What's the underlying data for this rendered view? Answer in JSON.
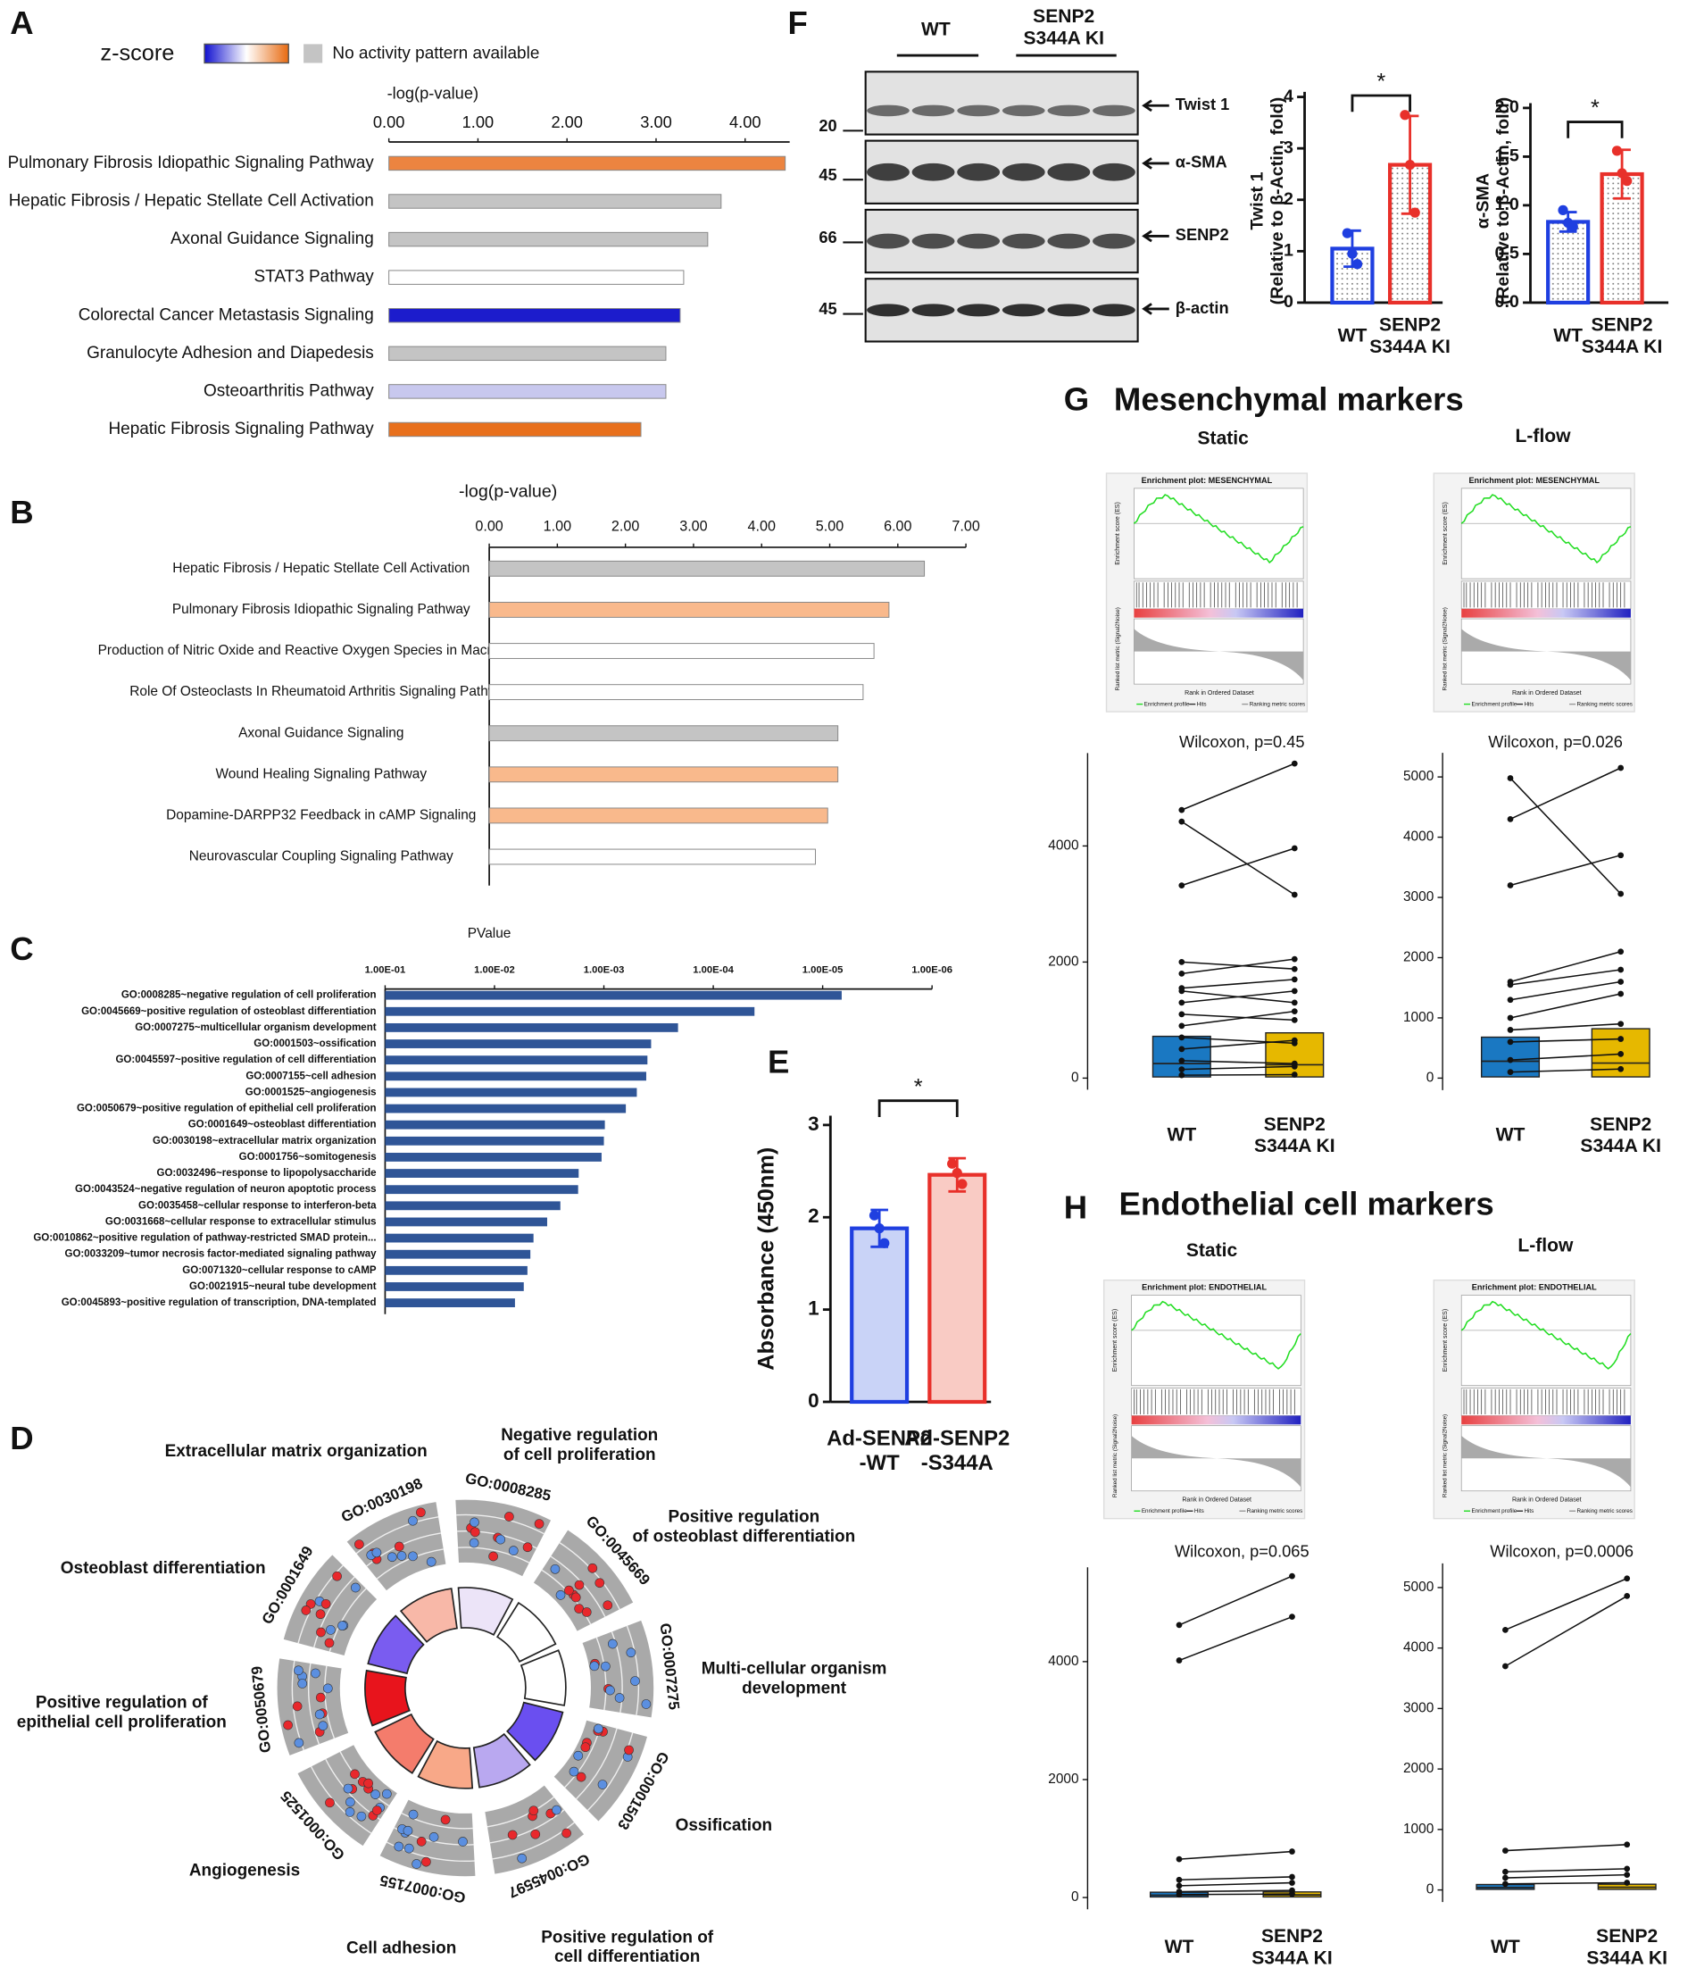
{
  "panel_labels": [
    "A",
    "B",
    "C",
    "D",
    "E",
    "F",
    "G",
    "H"
  ],
  "chart_data": [
    {
      "type": "hbar",
      "legend_title": "z-score",
      "legend_na": "No activity pattern available",
      "x_label": "-log(p-value)",
      "categories": [
        "Pulmonary Fibrosis Idiopathic Signaling Pathway",
        "Hepatic Fibrosis / Hepatic Stellate Cell Activation",
        "Axonal Guidance Signaling",
        "STAT3 Pathway",
        "Colorectal Cancer Metastasis Signaling",
        "Granulocyte Adhesion and Diapedesis",
        "Osteoarthritis Pathway",
        "Hepatic Fibrosis Signaling Pathway"
      ],
      "values": [
        4.45,
        3.73,
        3.58,
        3.31,
        3.27,
        3.11,
        3.11,
        2.83
      ],
      "colors": [
        "#ec8440",
        "#c4c4c4",
        "#c4c4c4",
        "#ffffff",
        "#1c1ccc",
        "#c4c4c4",
        "#c8c8ee",
        "#e8701c"
      ],
      "xlim": [
        0,
        4.5
      ],
      "xticks": [
        {
          "value": 0,
          "label": "0.00"
        },
        {
          "value": 1,
          "label": "1.00"
        },
        {
          "value": 2,
          "label": "2.00"
        },
        {
          "value": 3,
          "label": "3.00"
        },
        {
          "value": 4,
          "label": "4.00"
        }
      ]
    },
    {
      "type": "hbar",
      "x_label": "-log(p-value)",
      "categories": [
        "Hepatic Fibrosis / Hepatic Stellate Cell Activation",
        "Pulmonary Fibrosis Idiopathic Signaling Pathway",
        "Production of Nitric Oxide and Reactive Oxygen Species in Macrophages",
        "Role Of Osteoclasts In Rheumatoid Arthritis Signaling Pathway",
        "Axonal Guidance Signaling",
        "Wound Healing Signaling Pathway",
        "Dopamine-DARPP32 Feedback in cAMP Signaling",
        "Neurovascular Coupling Signaling Pathway"
      ],
      "values": [
        6.39,
        5.87,
        5.65,
        5.49,
        5.12,
        5.12,
        4.97,
        4.79
      ],
      "colors": [
        "#c4c4c4",
        "#f9b98c",
        "#ffffff",
        "#ffffff",
        "#c4c4c4",
        "#f9b98c",
        "#f9b98c",
        "#ffffff"
      ],
      "xlim": [
        0,
        7
      ],
      "xticks": [
        {
          "value": 0,
          "label": "0.00"
        },
        {
          "value": 1,
          "label": "1.00"
        },
        {
          "value": 2,
          "label": "2.00"
        },
        {
          "value": 3,
          "label": "3.00"
        },
        {
          "value": 4,
          "label": "4.00"
        },
        {
          "value": 5,
          "label": "5.00"
        },
        {
          "value": 6,
          "label": "6.00"
        },
        {
          "value": 7,
          "label": "7.00"
        }
      ]
    },
    {
      "type": "hbar",
      "log_scale": true,
      "x_label": "PValue",
      "categories": [
        "GO:0008285~negative regulation of cell proliferation",
        "GO:0045669~positive regulation of osteoblast differentiation",
        "GO:0007275~multicellular organism development",
        "GO:0001503~ossification",
        "GO:0045597~positive regulation of cell differentiation",
        "GO:0007155~cell adhesion",
        "GO:0001525~angiogenesis",
        "GO:0050679~positive regulation of epithelial cell proliferation",
        "GO:0001649~osteoblast differentiation",
        "GO:0030198~extracellular matrix organization",
        "GO:0001756~somitogenesis",
        "GO:0032496~response to lipopolysaccharide",
        "GO:0043524~negative regulation of neuron apoptotic process",
        "GO:0035458~cellular response to interferon-beta",
        "GO:0031668~cellular response to extracellular stimulus",
        "GO:0010862~positive regulation of pathway-restricted SMAD protein...",
        "GO:0033209~tumor necrosis factor-mediated signaling pathway",
        "GO:0071320~cellular response to cAMP",
        "GO:0021915~neural tube development",
        "GO:0045893~positive regulation of transcription, DNA-templated"
      ],
      "values": [
        6.7e-06,
        4.2e-05,
        0.00021,
        0.00037,
        0.0004,
        0.00041,
        0.0005,
        0.00063,
        0.00098,
        0.001,
        0.00105,
        0.0017,
        0.00172,
        0.0025,
        0.0033,
        0.0044,
        0.0047,
        0.005,
        0.0054,
        0.0065
      ],
      "color": "#2f5597",
      "xlim": [
        0.1,
        1e-06
      ],
      "xticks": [
        {
          "value": 0.1,
          "label": "1.00E-01"
        },
        {
          "value": 0.01,
          "label": "1.00E-02"
        },
        {
          "value": 0.001,
          "label": "1.00E-03"
        },
        {
          "value": 0.0001,
          "label": "1.00E-04"
        },
        {
          "value": 1e-05,
          "label": "1.00E-05"
        },
        {
          "value": 1e-06,
          "label": "1.00E-06"
        }
      ]
    },
    {
      "type": "bar",
      "y_label": "Absorbance (450nm)",
      "categories": [
        "Ad-SENP2\n-WT",
        "Ad-SENP2\n-S344A"
      ],
      "values": [
        1.88,
        2.46
      ],
      "errors": [
        0.2,
        0.18
      ],
      "points": [
        [
          2.02,
          1.88,
          1.72
        ],
        [
          2.58,
          2.48,
          2.36
        ]
      ],
      "colors": [
        "#1f3fe0",
        "#e8302a"
      ],
      "fills": [
        "#c9d3f7",
        "#f9cbc4"
      ],
      "ylim": [
        0,
        3.1
      ],
      "yticks": [
        0,
        1,
        2,
        3
      ],
      "annotation": "*"
    },
    {
      "type": "bar",
      "y_label": "Twist 1\n(Relative to β-Actin, fold)",
      "categories": [
        "WT",
        "SENP2\nS344A KI"
      ],
      "values": [
        1.05,
        2.68
      ],
      "errors": [
        0.35,
        0.95
      ],
      "points": [
        [
          1.35,
          0.95,
          0.75
        ],
        [
          3.65,
          2.68,
          1.75
        ]
      ],
      "colors": [
        "#1f3fe0",
        "#e8302a"
      ],
      "fill_style": "dotted",
      "ylim": [
        0,
        4.1
      ],
      "yticks": [
        0,
        1,
        2,
        3,
        4
      ],
      "annotation": "*"
    },
    {
      "type": "bar",
      "y_label": "α-SMA\n(Relative to β-Actin, fold)",
      "categories": [
        "WT",
        "SENP2\nS344A KI"
      ],
      "values": [
        0.83,
        1.32
      ],
      "errors": [
        0.1,
        0.25
      ],
      "points": [
        [
          0.95,
          0.82,
          0.78
        ],
        [
          1.56,
          1.33,
          1.25
        ]
      ],
      "colors": [
        "#1f3fe0",
        "#e8302a"
      ],
      "fill_style": "dotted",
      "ylim": [
        0,
        2.05
      ],
      "yticks": [
        {
          "value": 0,
          "label": "0.0"
        },
        0.5,
        {
          "value": 1,
          "label": "1.0"
        },
        1.5,
        {
          "value": 2,
          "label": "2.0"
        }
      ],
      "annotation": "*"
    },
    {
      "type": "paired",
      "title": "Wilcoxon, p=0.45",
      "categories": [
        "WT",
        "SENP2\nS344A KI"
      ],
      "colors": [
        "#1a78c2",
        "#e6b800"
      ],
      "boxes": [
        {
          "q1": 20,
          "median": 250,
          "q3": 720
        },
        {
          "q1": 20,
          "median": 230,
          "q3": 780
        }
      ],
      "pairs": [
        [
          4620,
          5420
        ],
        [
          4420,
          3160
        ],
        [
          3320,
          3960
        ],
        [
          2000,
          1880
        ],
        [
          1800,
          2050
        ],
        [
          1550,
          1700
        ],
        [
          1500,
          1300
        ],
        [
          1300,
          1500
        ],
        [
          1100,
          1000
        ],
        [
          900,
          1150
        ],
        [
          700,
          600
        ],
        [
          500,
          650
        ],
        [
          300,
          250
        ],
        [
          150,
          200
        ],
        [
          50,
          60
        ]
      ],
      "ylim": [
        -200,
        5600
      ],
      "yticks": [
        0,
        2000,
        4000
      ]
    },
    {
      "type": "paired",
      "title": "Wilcoxon, p=0.026",
      "categories": [
        "WT",
        "SENP2\nS344A KI"
      ],
      "colors": [
        "#1a78c2",
        "#e6b800"
      ],
      "boxes": [
        {
          "q1": 20,
          "median": 280,
          "q3": 680
        },
        {
          "q1": 20,
          "median": 250,
          "q3": 820
        }
      ],
      "pairs": [
        [
          4980,
          3060
        ],
        [
          4300,
          5150
        ],
        [
          3200,
          3700
        ],
        [
          1600,
          2100
        ],
        [
          1550,
          1800
        ],
        [
          1300,
          1600
        ],
        [
          1000,
          1400
        ],
        [
          800,
          900
        ],
        [
          600,
          650
        ],
        [
          300,
          400
        ],
        [
          100,
          150
        ]
      ],
      "ylim": [
        -200,
        5400
      ],
      "yticks": [
        0,
        1000,
        2000,
        3000,
        4000,
        5000
      ]
    },
    {
      "type": "paired",
      "title": "Wilcoxon, p=0.065",
      "categories": [
        "WT",
        "SENP2\nS344A KI"
      ],
      "colors": [
        "#1a78c2",
        "#e6b800"
      ],
      "boxes": [
        {
          "q1": 10,
          "median": 40,
          "q3": 90
        },
        {
          "q1": 10,
          "median": 45,
          "q3": 95
        }
      ],
      "pairs": [
        [
          4620,
          5450
        ],
        [
          4020,
          4760
        ],
        [
          650,
          780
        ],
        [
          300,
          350
        ],
        [
          200,
          250
        ],
        [
          100,
          120
        ],
        [
          50,
          60
        ]
      ],
      "ylim": [
        -200,
        5600
      ],
      "yticks": [
        0,
        2000,
        4000
      ]
    },
    {
      "type": "paired",
      "title": "Wilcoxon, p=0.0006",
      "categories": [
        "WT",
        "SENP2\nS344A KI"
      ],
      "colors": [
        "#1a78c2",
        "#e6b800"
      ],
      "boxes": [
        {
          "q1": 10,
          "median": 40,
          "q3": 90
        },
        {
          "q1": 10,
          "median": 45,
          "q3": 95
        }
      ],
      "pairs": [
        [
          4300,
          5150
        ],
        [
          3700,
          4860
        ],
        [
          650,
          750
        ],
        [
          300,
          350
        ],
        [
          200,
          250
        ],
        [
          100,
          120
        ]
      ],
      "ylim": [
        -200,
        5400
      ],
      "yticks": [
        0,
        1000,
        2000,
        3000,
        4000,
        5000
      ]
    }
  ],
  "blot": {
    "lanes": [
      "WT",
      "SENP2\nS344A KI"
    ],
    "markers": [
      "20",
      "45",
      "66",
      "45"
    ],
    "proteins": [
      "Twist 1",
      "α-SMA",
      "SENP2",
      "β-actin"
    ]
  },
  "circle": {
    "terms": [
      {
        "go": "GO:0008285",
        "label": "Negative regulation\nof cell proliferation",
        "color": "#ece4f8"
      },
      {
        "go": "GO:0045669",
        "label": "Positive regulation\nof osteoblast differentiation",
        "color": "#ffffff"
      },
      {
        "go": "GO:0007275",
        "label": "Multi-cellular organism\ndevelopment",
        "color": "#ffffff"
      },
      {
        "go": "GO:0001503",
        "label": "Ossification",
        "color": "#6a4ff0"
      },
      {
        "go": "GO:0045597",
        "label": "Positive regulation of\ncell differentiation",
        "color": "#b9a8f0"
      },
      {
        "go": "GO:0007155",
        "label": "Cell adhesion",
        "color": "#f8a888"
      },
      {
        "go": "GO:0001525",
        "label": "Angiogenesis",
        "color": "#f47c6c"
      },
      {
        "go": "GO:0050679",
        "label": "Positive regulation of\nepithelial cell proliferation",
        "color": "#e8141c"
      },
      {
        "go": "GO:0001649",
        "label": "Osteoblast differentiation",
        "color": "#7a5cf0"
      },
      {
        "go": "GO:0030198",
        "label": "Extracellular matrix organization",
        "color": "#f8b8a8"
      }
    ]
  },
  "gsea": {
    "G": {
      "title": "Mesenchymal markers",
      "conditions": [
        "Static",
        "L-flow"
      ],
      "plot_title": "Enrichment plot: MESENCHYMAL"
    },
    "H": {
      "title": "Endothelial cell markers",
      "conditions": [
        "Static",
        "L-flow"
      ],
      "plot_title": "Enrichment plot: ENDOTHELIAL"
    },
    "labels": {
      "es": "Enrichment score (ES)",
      "metric": "Ranked list metric (Signal2Noise)",
      "rank": "Rank in Ordered Dataset",
      "legend": [
        "Enrichment profile",
        "Hits",
        "Ranking metric scores"
      ]
    }
  }
}
